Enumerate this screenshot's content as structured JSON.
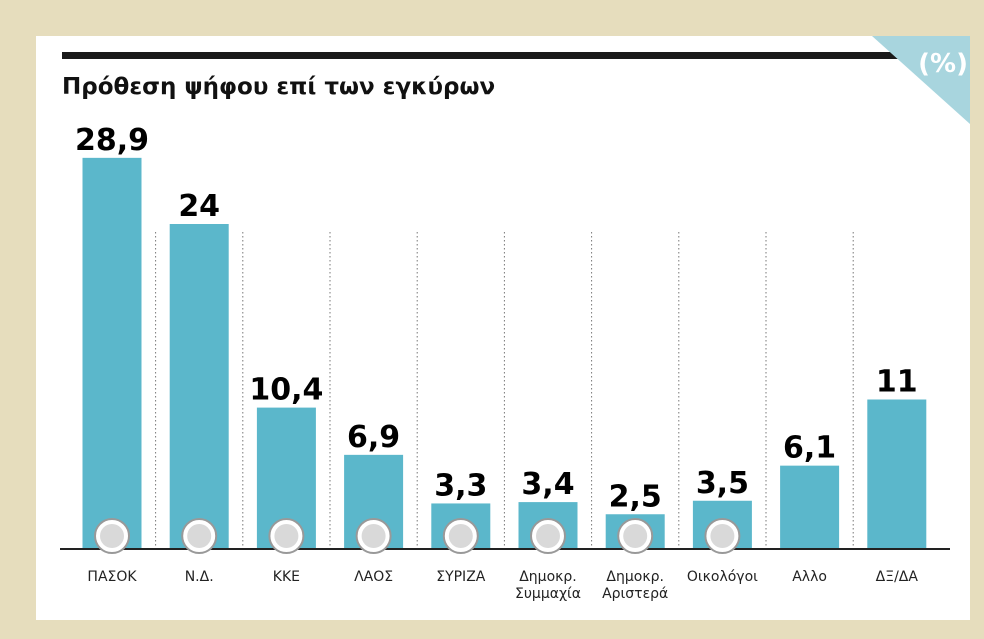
{
  "chart_data": {
    "type": "bar",
    "title": "Πρόθεση ψήφου επί των εγκύρων",
    "unit_label": "(%)",
    "categories": [
      "ΠΑΣΟΚ",
      "Ν.Δ.",
      "ΚΚΕ",
      "ΛΑΟΣ",
      "ΣΥΡΙΖΑ",
      "Δημοκρ.\nΣυμμαχία",
      "Δημοκρ.\nΑριστερά",
      "Οικολόγοι",
      "Αλλο",
      "ΔΞ/ΔΑ"
    ],
    "values": [
      28.9,
      24,
      10.4,
      6.9,
      3.3,
      3.4,
      2.5,
      3.5,
      6.1,
      11
    ],
    "value_labels": [
      "28,9",
      "24",
      "10,4",
      "6,9",
      "3,3",
      "3,4",
      "2,5",
      "3,5",
      "6,1",
      "11"
    ],
    "color": "#5bb7cb"
  }
}
